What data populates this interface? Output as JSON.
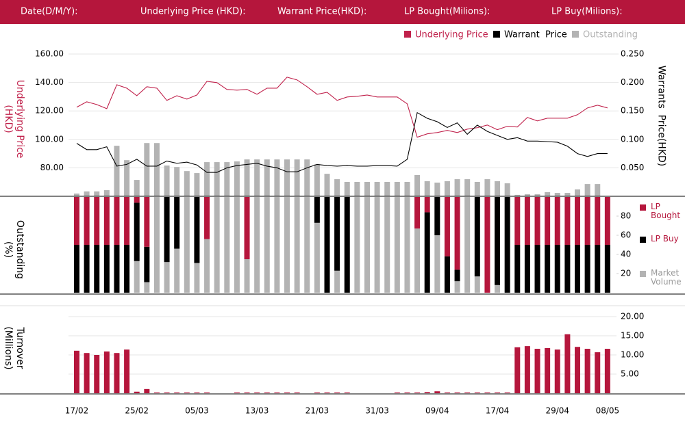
{
  "header": {
    "labels": [
      "Date(D/M/Y):",
      "Underlying Price (HKD):",
      "Warrant  Price(HKD):",
      "LP Bought(Milions):",
      "LP Buy(Milions):"
    ]
  },
  "chart_data": [
    {
      "type": "line",
      "y_label": "Underlying Price (HKD)",
      "y2_label": "Warrants  Price(HKD)",
      "ylim": [
        60,
        160
      ],
      "yticks": [
        {
          "value": 80,
          "label": "80.00"
        },
        {
          "value": 100,
          "label": "100.00"
        },
        {
          "value": 120,
          "label": "120.00"
        },
        {
          "value": 140,
          "label": "140.00"
        },
        {
          "value": 160,
          "label": "160.00"
        }
      ],
      "y2lim": [
        0,
        0.25
      ],
      "y2ticks": [
        {
          "value": 0.05,
          "label": "0.050"
        },
        {
          "value": 0.1,
          "label": "0.100"
        },
        {
          "value": 0.15,
          "label": "0.150"
        },
        {
          "value": 0.2,
          "label": "0.200"
        },
        {
          "value": 0.25,
          "label": "0.250"
        }
      ],
      "grid": true,
      "series": [
        {
          "name": "Underlying Price",
          "color": "#c0214b",
          "type": "line",
          "axis": "y",
          "values": [
            122.6,
            126.4,
            124.5,
            121.6,
            138.4,
            136.0,
            130.7,
            137.0,
            136.0,
            127.4,
            130.7,
            128.3,
            131.2,
            140.8,
            139.9,
            135.1,
            134.6,
            135.1,
            131.7,
            136.0,
            136.0,
            143.7,
            141.8,
            137.0,
            131.7,
            133.1,
            127.4,
            129.8,
            130.3,
            131.2,
            129.8,
            129.8,
            129.8,
            125.0,
            101.5,
            103.9,
            104.8,
            106.3,
            104.8,
            107.2,
            108.2,
            110.1,
            106.8,
            109.2,
            108.7,
            115.4,
            113.0,
            114.9,
            114.9,
            114.9,
            117.3,
            122.1,
            124.0,
            122.1
          ]
        },
        {
          "name": "Warrant  Price",
          "color": "#000000",
          "type": "line",
          "axis": "y2",
          "values": [
            0.093,
            0.082,
            0.082,
            0.087,
            0.053,
            0.056,
            0.065,
            0.053,
            0.053,
            0.062,
            0.058,
            0.06,
            0.055,
            0.042,
            0.042,
            0.05,
            0.054,
            0.056,
            0.058,
            0.053,
            0.05,
            0.043,
            0.043,
            0.05,
            0.056,
            0.054,
            0.053,
            0.054,
            0.053,
            0.053,
            0.054,
            0.054,
            0.053,
            0.065,
            0.147,
            0.137,
            0.131,
            0.121,
            0.129,
            0.109,
            0.125,
            0.114,
            0.107,
            0.1,
            0.103,
            0.097,
            0.097,
            0.096,
            0.095,
            0.088,
            0.075,
            0.07,
            0.075,
            0.075
          ]
        },
        {
          "name": "Outstanding",
          "color": "#b3b3b3",
          "type": "bar",
          "axis": "y",
          "values": [
            61.9,
            63.4,
            63.4,
            64.3,
            95.5,
            85.4,
            71.5,
            97.4,
            97.4,
            81.6,
            80.6,
            77.7,
            76.3,
            84.0,
            84.0,
            84.0,
            84.5,
            85.9,
            85.9,
            85.9,
            85.9,
            85.9,
            85.9,
            85.9,
            82.5,
            75.8,
            72.0,
            70.1,
            70.1,
            70.1,
            70.1,
            70.1,
            70.1,
            70.1,
            74.9,
            70.6,
            69.6,
            70.6,
            72.0,
            72.0,
            70.1,
            72.0,
            70.6,
            69.1,
            61.0,
            61.4,
            61.4,
            62.9,
            62.4,
            62.4,
            64.8,
            68.6,
            68.6,
            null
          ]
        }
      ]
    },
    {
      "type": "bar",
      "stacked": true,
      "y_label": "Outstanding (%)",
      "ylim": [
        0,
        100
      ],
      "yticks": [
        20,
        40,
        60,
        80
      ],
      "series": [
        {
          "name": "LP Buy",
          "color": "#000000",
          "values": [
            50,
            50,
            50,
            50,
            50,
            50,
            61,
            37,
            0,
            68,
            54,
            0,
            69,
            0,
            0,
            0,
            0,
            0,
            0,
            0,
            0,
            0,
            0,
            0,
            27,
            100,
            77,
            100,
            0,
            0,
            0,
            0,
            0,
            0,
            0,
            84,
            40,
            38,
            12,
            0,
            83,
            0,
            92,
            100,
            50,
            50,
            50,
            50,
            50,
            50,
            50,
            50,
            50,
            50
          ]
        },
        {
          "name": "LP Bought",
          "color": "#b5163c",
          "values": [
            50,
            50,
            50,
            50,
            50,
            50,
            6,
            52,
            0,
            0,
            0,
            0,
            0,
            44,
            0,
            0,
            0,
            65,
            0,
            0,
            0,
            0,
            0,
            0,
            0,
            0,
            0,
            0,
            0,
            0,
            0,
            0,
            0,
            0,
            33,
            16,
            0,
            62,
            76,
            0,
            0,
            100,
            0,
            0,
            50,
            50,
            50,
            50,
            50,
            50,
            50,
            50,
            50,
            50
          ]
        },
        {
          "name": "Market Volume",
          "color": "#b3b3b3",
          "values": [
            0,
            0,
            0,
            0,
            0,
            0,
            33,
            11,
            100,
            32,
            46,
            100,
            31,
            56,
            100,
            100,
            100,
            35,
            100,
            100,
            100,
            100,
            100,
            100,
            73,
            0,
            23,
            0,
            100,
            100,
            100,
            100,
            100,
            100,
            67,
            0,
            60,
            0,
            12,
            100,
            17,
            0,
            8,
            0,
            0,
            0,
            0,
            0,
            0,
            0,
            0,
            0,
            0,
            0
          ]
        }
      ]
    },
    {
      "type": "bar",
      "y_label": "Turnover (Millions)",
      "ylim": [
        0,
        22.5
      ],
      "yticks": [
        {
          "value": 5,
          "label": "5.00"
        },
        {
          "value": 10,
          "label": "10.00"
        },
        {
          "value": 15,
          "label": "15.00"
        },
        {
          "value": 20,
          "label": "20.00"
        }
      ],
      "grid": true,
      "color": "#b5163c",
      "categories": [
        "17/02",
        null,
        null,
        null,
        null,
        null,
        "25/02",
        null,
        null,
        null,
        null,
        null,
        "05/03",
        null,
        null,
        null,
        null,
        null,
        "13/03",
        null,
        null,
        null,
        null,
        null,
        "21/03",
        null,
        null,
        null,
        null,
        null,
        "31/03",
        null,
        null,
        null,
        null,
        null,
        "09/04",
        null,
        null,
        null,
        null,
        null,
        "17/04",
        null,
        null,
        null,
        null,
        null,
        "29/04",
        null,
        null,
        null,
        null,
        "08/05"
      ],
      "values": [
        11.1,
        10.5,
        10.0,
        10.9,
        10.5,
        11.4,
        0.4,
        1.1,
        0.2,
        0.2,
        0.2,
        0.2,
        0.2,
        0.2,
        0,
        0,
        0.2,
        0.2,
        0.2,
        0.2,
        0.2,
        0.2,
        0.2,
        0,
        0.2,
        0.2,
        0.2,
        0.2,
        0,
        0,
        0,
        0,
        0.2,
        0.2,
        0.2,
        0.3,
        0.5,
        0.2,
        0.2,
        0.2,
        0.2,
        0.2,
        0.2,
        0.2,
        12.0,
        12.3,
        11.6,
        11.8,
        11.4,
        15.4,
        12.1,
        11.6,
        10.7,
        11.6
      ]
    }
  ]
}
